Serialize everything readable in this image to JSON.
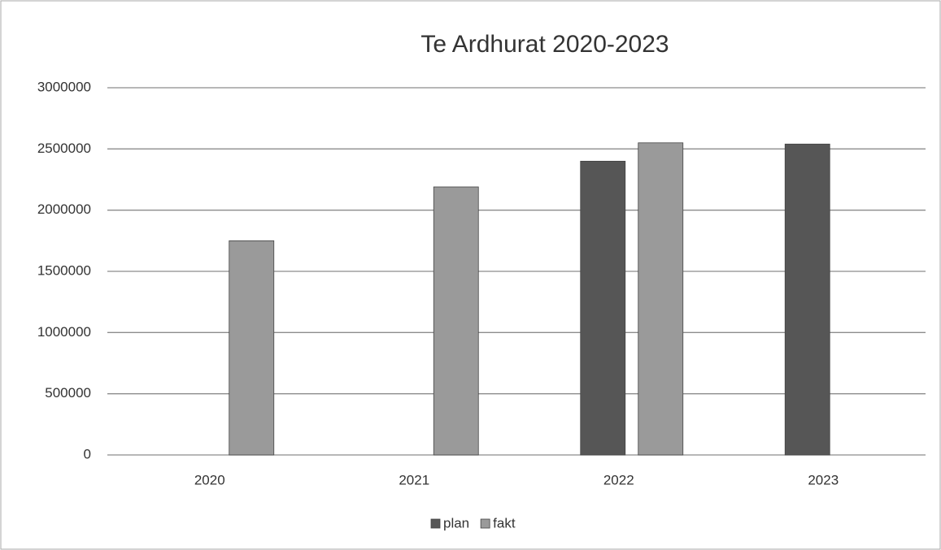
{
  "chart_data": {
    "type": "bar",
    "title": "Te Ardhurat 2020-2023",
    "categories": [
      "2020",
      "2021",
      "2022",
      "2023"
    ],
    "series": [
      {
        "name": "plan",
        "color": "#565656",
        "values": [
          null,
          null,
          2400000,
          2540000
        ]
      },
      {
        "name": "fakt",
        "color": "#9a9a9a",
        "values": [
          1750000,
          2190000,
          2550000,
          null
        ]
      }
    ],
    "ylim": [
      0,
      3000000
    ],
    "yticks": [
      0,
      500000,
      1000000,
      1500000,
      2000000,
      2500000,
      3000000
    ],
    "grid": true,
    "legend": "bottom"
  }
}
